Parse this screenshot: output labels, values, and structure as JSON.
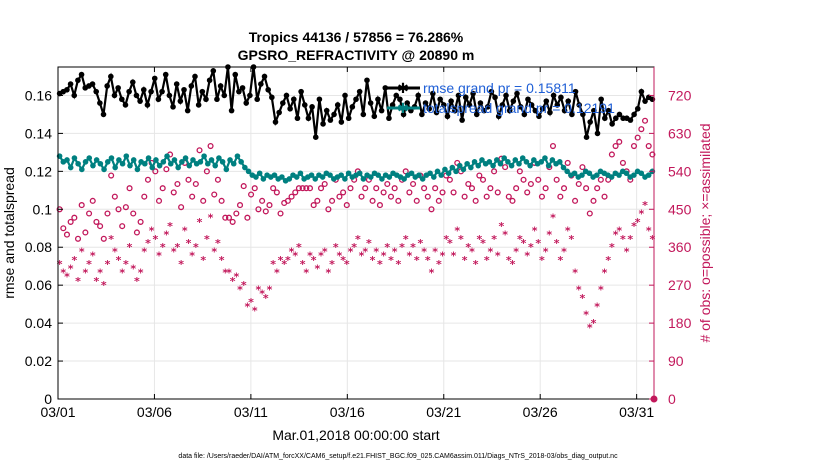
{
  "chart_data": {
    "type": "line",
    "title": "Tropics 44136 / 57856 = 76.286%",
    "subtitle": "GPSRO_REFRACTIVITY @ 20890 m",
    "xlabel": "Mar.01,2018 00:00:00 start",
    "ylabel": "rmse and totalspread",
    "ylabel_right": "# of obs: o=possible; ×=assimilated",
    "footnote": "data file: /Users/raeder/DAI/ATM_forcXX/CAM6_setup/f.e21.FHIST_BGC.f09_025.CAM6assim.011/Diags_NTrS_2018-03/obs_diag_output.nc",
    "x_tick_labels": [
      "03/01",
      "03/06",
      "03/11",
      "03/16",
      "03/21",
      "03/26",
      "03/31"
    ],
    "x_tick_days": [
      1,
      6,
      11,
      16,
      21,
      26,
      31
    ],
    "xlim": [
      1,
      31.9
    ],
    "ylim": [
      0,
      0.175
    ],
    "y_tick_labels": [
      "0",
      "0.02",
      "0.04",
      "0.06",
      "0.08",
      "0.1",
      "0.12",
      "0.14",
      "0.16"
    ],
    "y_tick_values": [
      0,
      0.02,
      0.04,
      0.06,
      0.08,
      0.1,
      0.12,
      0.14,
      0.16
    ],
    "ylim_right": [
      0,
      787.5
    ],
    "y2_tick_labels": [
      "0",
      "90",
      "180",
      "270",
      "360",
      "450",
      "540",
      "630",
      "720"
    ],
    "y2_tick_values": [
      0,
      90,
      180,
      270,
      360,
      450,
      540,
      630,
      720
    ],
    "grid": true,
    "legend_position": "top-right",
    "series": [
      {
        "name": "rmse grand pr = 0.15811",
        "axis": "left",
        "color": "#000000",
        "marker": "star",
        "values": [
          0.161,
          0.162,
          0.163,
          0.166,
          0.16,
          0.168,
          0.171,
          0.164,
          0.165,
          0.166,
          0.162,
          0.156,
          0.15,
          0.165,
          0.17,
          0.16,
          0.164,
          0.158,
          0.155,
          0.162,
          0.167,
          0.16,
          0.157,
          0.163,
          0.155,
          0.162,
          0.169,
          0.158,
          0.162,
          0.171,
          0.16,
          0.154,
          0.166,
          0.157,
          0.163,
          0.152,
          0.165,
          0.17,
          0.155,
          0.162,
          0.158,
          0.168,
          0.173,
          0.158,
          0.165,
          0.16,
          0.175,
          0.152,
          0.171,
          0.162,
          0.164,
          0.156,
          0.16,
          0.175,
          0.158,
          0.166,
          0.17,
          0.163,
          0.159,
          0.146,
          0.151,
          0.156,
          0.16,
          0.153,
          0.158,
          0.148,
          0.162,
          0.155,
          0.148,
          0.154,
          0.138,
          0.158,
          0.145,
          0.152,
          0.147,
          0.15,
          0.155,
          0.146,
          0.16,
          0.148,
          0.154,
          0.158,
          0.162,
          0.15,
          0.168,
          0.156,
          0.149,
          0.158,
          0.152,
          0.164,
          0.148,
          0.155,
          0.16,
          0.158,
          0.15,
          0.156,
          0.152,
          0.154,
          0.16,
          0.15,
          0.156,
          0.153,
          0.161,
          0.151,
          0.158,
          0.155,
          0.149,
          0.157,
          0.152,
          0.16,
          0.147,
          0.159,
          0.155,
          0.161,
          0.15,
          0.156,
          0.152,
          0.154,
          0.162,
          0.159,
          0.149,
          0.155,
          0.16,
          0.152,
          0.157,
          0.161,
          0.154,
          0.15,
          0.158,
          0.155,
          0.152,
          0.149,
          0.153,
          0.157,
          0.151,
          0.16,
          0.155,
          0.159,
          0.152,
          0.157,
          0.15,
          0.162,
          0.155,
          0.15,
          0.138,
          0.146,
          0.152,
          0.14,
          0.158,
          0.148,
          0.152,
          0.145,
          0.148,
          0.15,
          0.148,
          0.148,
          0.147,
          0.15,
          0.153,
          0.162,
          0.157,
          0.159,
          0.158
        ]
      },
      {
        "name": "totalspread grand pr = 0.12191",
        "axis": "left",
        "color": "#008080",
        "marker": "star",
        "values": [
          0.128,
          0.125,
          0.126,
          0.122,
          0.127,
          0.124,
          0.121,
          0.125,
          0.127,
          0.123,
          0.126,
          0.124,
          0.121,
          0.125,
          0.127,
          0.122,
          0.126,
          0.124,
          0.128,
          0.123,
          0.126,
          0.121,
          0.125,
          0.124,
          0.127,
          0.122,
          0.126,
          0.123,
          0.125,
          0.128,
          0.124,
          0.126,
          0.122,
          0.125,
          0.127,
          0.123,
          0.126,
          0.124,
          0.125,
          0.128,
          0.124,
          0.126,
          0.123,
          0.127,
          0.125,
          0.121,
          0.126,
          0.124,
          0.128,
          0.125,
          0.122,
          0.12,
          0.118,
          0.117,
          0.119,
          0.116,
          0.118,
          0.117,
          0.118,
          0.116,
          0.117,
          0.115,
          0.116,
          0.118,
          0.117,
          0.119,
          0.116,
          0.117,
          0.118,
          0.116,
          0.118,
          0.117,
          0.119,
          0.118,
          0.116,
          0.117,
          0.118,
          0.116,
          0.119,
          0.117,
          0.118,
          0.119,
          0.116,
          0.118,
          0.117,
          0.119,
          0.118,
          0.116,
          0.118,
          0.117,
          0.119,
          0.118,
          0.117,
          0.116,
          0.118,
          0.119,
          0.117,
          0.118,
          0.116,
          0.118,
          0.119,
          0.117,
          0.12,
          0.118,
          0.121,
          0.119,
          0.122,
          0.12,
          0.123,
          0.121,
          0.124,
          0.122,
          0.125,
          0.123,
          0.126,
          0.124,
          0.125,
          0.123,
          0.126,
          0.124,
          0.127,
          0.125,
          0.123,
          0.126,
          0.124,
          0.127,
          0.125,
          0.123,
          0.126,
          0.124,
          0.125,
          0.127,
          0.123,
          0.126,
          0.124,
          0.125,
          0.122,
          0.12,
          0.118,
          0.119,
          0.117,
          0.118,
          0.12,
          0.119,
          0.117,
          0.118,
          0.12,
          0.119,
          0.118,
          0.117,
          0.119,
          0.118,
          0.12,
          0.119,
          0.117,
          0.118,
          0.12,
          0.119,
          0.117,
          0.118,
          0.12
        ]
      },
      {
        "name": "obs possible",
        "axis": "right",
        "color": "#c2185b",
        "marker": "circle",
        "values": [
          450,
          405,
          390,
          420,
          430,
          380,
          460,
          395,
          440,
          470,
          420,
          410,
          380,
          440,
          530,
          480,
          450,
          410,
          455,
          500,
          440,
          395,
          420,
          480,
          520,
          560,
          540,
          470,
          500,
          545,
          580,
          490,
          510,
          455,
          560,
          520,
          480,
          510,
          590,
          470,
          540,
          600,
          485,
          520,
          470,
          430,
          430,
          420,
          440,
          460,
          505,
          430,
          485,
          500,
          450,
          470,
          445,
          460,
          500,
          490,
          440,
          465,
          470,
          480,
          490,
          500,
          500,
          500,
          500,
          460,
          470,
          500,
          510,
          450,
          470,
          520,
          480,
          490,
          460,
          500,
          520,
          540,
          480,
          500,
          520,
          470,
          500,
          460,
          490,
          510,
          480,
          500,
          470,
          520,
          540,
          490,
          510,
          470,
          530,
          500,
          480,
          450,
          500,
          470,
          490,
          530,
          520,
          490,
          560,
          540,
          480,
          510,
          500,
          470,
          530,
          520,
          480,
          500,
          540,
          490,
          570,
          550,
          480,
          470,
          500,
          540,
          520,
          490,
          510,
          560,
          520,
          480,
          500,
          550,
          600,
          520,
          480,
          500,
          560,
          530,
          470,
          510,
          550,
          500,
          440,
          470,
          500,
          520,
          480,
          520,
          580,
          600,
          610,
          560,
          540,
          520,
          600,
          620,
          640,
          660,
          600,
          580
        ]
      },
      {
        "name": "obs assimilated",
        "axis": "right",
        "color": "#c2185b",
        "marker": "asterisk",
        "values": [
          320,
          300,
          290,
          310,
          330,
          280,
          350,
          300,
          320,
          340,
          280,
          300,
          270,
          320,
          380,
          350,
          330,
          300,
          320,
          360,
          310,
          280,
          300,
          350,
          370,
          400,
          380,
          340,
          360,
          390,
          410,
          350,
          360,
          320,
          400,
          370,
          340,
          360,
          420,
          330,
          380,
          430,
          350,
          370,
          330,
          300,
          300,
          280,
          290,
          260,
          270,
          220,
          230,
          210,
          260,
          250,
          240,
          260,
          320,
          300,
          330,
          320,
          330,
          350,
          340,
          360,
          320,
          300,
          340,
          330,
          310,
          340,
          350,
          300,
          320,
          360,
          340,
          330,
          320,
          350,
          360,
          380,
          340,
          350,
          370,
          330,
          350,
          320,
          340,
          360,
          330,
          350,
          320,
          360,
          380,
          340,
          360,
          330,
          370,
          350,
          330,
          300,
          350,
          320,
          340,
          380,
          370,
          340,
          400,
          380,
          330,
          360,
          350,
          320,
          380,
          370,
          330,
          350,
          380,
          340,
          410,
          390,
          330,
          320,
          350,
          380,
          370,
          340,
          360,
          400,
          370,
          330,
          350,
          390,
          430,
          370,
          330,
          350,
          400,
          380,
          300,
          260,
          240,
          200,
          170,
          180,
          220,
          260,
          300,
          330,
          360,
          390,
          400,
          380,
          350,
          380,
          410,
          420,
          440,
          460,
          400,
          380
        ]
      }
    ]
  }
}
